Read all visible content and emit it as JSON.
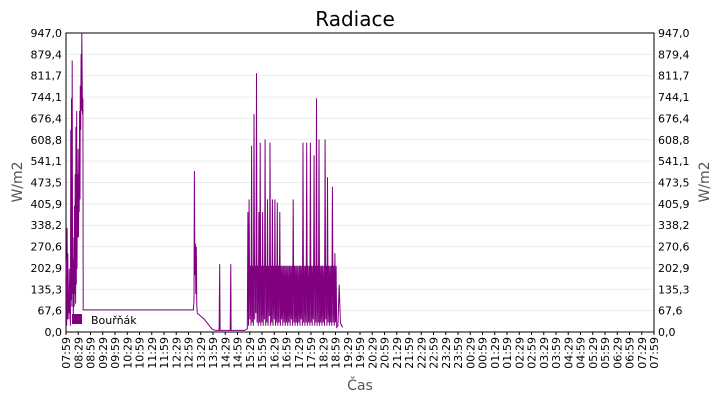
{
  "chart_data": {
    "type": "line",
    "title": "Radiace",
    "xlabel": "Čas",
    "ylabel": "W/m2",
    "ylabel_right": "W/m2",
    "ylim": [
      0.0,
      947.0
    ],
    "y_ticks": [
      "0,0",
      "67,6",
      "135,3",
      "202,9",
      "270,6",
      "338,2",
      "405,9",
      "473,5",
      "541,1",
      "608,8",
      "676,4",
      "744,1",
      "811,7",
      "879,4",
      "947,0"
    ],
    "x_ticks": [
      "07:59",
      "08:29",
      "08:59",
      "09:29",
      "09:59",
      "10:29",
      "10:59",
      "11:29",
      "11:59",
      "12:29",
      "12:59",
      "13:29",
      "13:59",
      "14:29",
      "14:59",
      "15:29",
      "15:59",
      "16:29",
      "16:59",
      "17:29",
      "17:59",
      "18:29",
      "18:59",
      "19:29",
      "19:59",
      "20:29",
      "20:59",
      "21:29",
      "21:59",
      "22:29",
      "22:59",
      "23:29",
      "23:59",
      "00:29",
      "00:59",
      "01:29",
      "01:59",
      "02:29",
      "02:59",
      "03:29",
      "03:59",
      "04:29",
      "04:59",
      "05:29",
      "05:59",
      "06:29",
      "06:59",
      "07:29",
      "07:59"
    ],
    "legend": "bottom-left",
    "grid": true,
    "series": [
      {
        "name": "Bouřňák",
        "color": "#800080",
        "points": [
          [
            0.0,
            180
          ],
          [
            0.03,
            230
          ],
          [
            0.06,
            20
          ],
          [
            0.09,
            330
          ],
          [
            0.12,
            40
          ],
          [
            0.15,
            250
          ],
          [
            0.18,
            60
          ],
          [
            0.21,
            120
          ],
          [
            0.24,
            40
          ],
          [
            0.27,
            200
          ],
          [
            0.3,
            60
          ],
          [
            0.33,
            150
          ],
          [
            0.36,
            20
          ],
          [
            0.39,
            640
          ],
          [
            0.42,
            100
          ],
          [
            0.45,
            740
          ],
          [
            0.48,
            80
          ],
          [
            0.51,
            860
          ],
          [
            0.54,
            120
          ],
          [
            0.57,
            300
          ],
          [
            0.6,
            40
          ],
          [
            0.63,
            230
          ],
          [
            0.66,
            80
          ],
          [
            0.69,
            400
          ],
          [
            0.72,
            120
          ],
          [
            0.75,
            500
          ],
          [
            0.78,
            90
          ],
          [
            0.81,
            650
          ],
          [
            0.84,
            150
          ],
          [
            0.87,
            700
          ],
          [
            0.9,
            200
          ],
          [
            0.93,
            500
          ],
          [
            0.96,
            300
          ],
          [
            0.99,
            580
          ],
          [
            1.02,
            300
          ],
          [
            1.05,
            500
          ],
          [
            1.08,
            380
          ],
          [
            1.11,
            700
          ],
          [
            1.14,
            420
          ],
          [
            1.17,
            780
          ],
          [
            1.2,
            640
          ],
          [
            1.23,
            880
          ],
          [
            1.26,
            700
          ],
          [
            1.29,
            947
          ],
          [
            1.32,
            800
          ],
          [
            1.35,
            690
          ],
          [
            1.38,
            740
          ],
          [
            1.4,
            70
          ],
          [
            2.0,
            70
          ],
          [
            3.0,
            70
          ],
          [
            4.0,
            70
          ],
          [
            5.0,
            70
          ],
          [
            6.0,
            70
          ],
          [
            7.0,
            70
          ],
          [
            8.0,
            70
          ],
          [
            9.0,
            70
          ],
          [
            10.0,
            70
          ],
          [
            10.4,
            70
          ],
          [
            10.45,
            100
          ],
          [
            10.48,
            510
          ],
          [
            10.52,
            180
          ],
          [
            10.56,
            280
          ],
          [
            10.6,
            120
          ],
          [
            10.64,
            270
          ],
          [
            10.68,
            80
          ],
          [
            10.72,
            60
          ],
          [
            11.0,
            50
          ],
          [
            11.3,
            40
          ],
          [
            11.6,
            25
          ],
          [
            11.9,
            10
          ],
          [
            12.2,
            5
          ],
          [
            12.5,
            5
          ],
          [
            12.55,
            215
          ],
          [
            12.58,
            5
          ],
          [
            13.0,
            5
          ],
          [
            13.4,
            5
          ],
          [
            13.45,
            215
          ],
          [
            13.48,
            5
          ],
          [
            14.0,
            5
          ],
          [
            14.6,
            5
          ],
          [
            14.8,
            10
          ],
          [
            14.85,
            380
          ],
          [
            14.9,
            20
          ],
          [
            14.95,
            420
          ],
          [
            15.0,
            40
          ],
          [
            15.05,
            210
          ],
          [
            15.1,
            20
          ],
          [
            15.15,
            590
          ],
          [
            15.2,
            30
          ],
          [
            15.25,
            210
          ],
          [
            15.3,
            20
          ],
          [
            15.35,
            690
          ],
          [
            15.4,
            40
          ],
          [
            15.45,
            210
          ],
          [
            15.5,
            60
          ],
          [
            15.55,
            820
          ],
          [
            15.6,
            30
          ],
          [
            15.65,
            210
          ],
          [
            15.7,
            20
          ],
          [
            15.75,
            380
          ],
          [
            15.8,
            30
          ],
          [
            15.85,
            600
          ],
          [
            15.9,
            20
          ],
          [
            15.95,
            210
          ],
          [
            16.0,
            30
          ],
          [
            16.05,
            380
          ],
          [
            16.1,
            20
          ],
          [
            16.15,
            210
          ],
          [
            16.2,
            40
          ],
          [
            16.25,
            610
          ],
          [
            16.3,
            20
          ],
          [
            16.35,
            210
          ],
          [
            16.4,
            30
          ],
          [
            16.45,
            420
          ],
          [
            16.5,
            20
          ],
          [
            16.55,
            210
          ],
          [
            16.6,
            50
          ],
          [
            16.65,
            600
          ],
          [
            16.7,
            20
          ],
          [
            16.75,
            210
          ],
          [
            16.8,
            30
          ],
          [
            16.85,
            420
          ],
          [
            16.9,
            20
          ],
          [
            16.95,
            210
          ],
          [
            17.0,
            40
          ],
          [
            17.05,
            420
          ],
          [
            17.1,
            20
          ],
          [
            17.15,
            210
          ],
          [
            17.2,
            30
          ],
          [
            17.25,
            410
          ],
          [
            17.3,
            20
          ],
          [
            17.35,
            210
          ],
          [
            17.4,
            30
          ],
          [
            17.45,
            380
          ],
          [
            17.5,
            20
          ],
          [
            17.55,
            210
          ],
          [
            17.6,
            40
          ],
          [
            17.65,
            210
          ],
          [
            17.7,
            20
          ],
          [
            17.75,
            210
          ],
          [
            17.8,
            30
          ],
          [
            17.85,
            210
          ],
          [
            17.9,
            20
          ],
          [
            17.95,
            210
          ],
          [
            18.0,
            30
          ],
          [
            18.05,
            210
          ],
          [
            18.1,
            20
          ],
          [
            18.15,
            210
          ],
          [
            18.2,
            30
          ],
          [
            18.25,
            210
          ],
          [
            18.3,
            20
          ],
          [
            18.35,
            210
          ],
          [
            18.4,
            40
          ],
          [
            18.45,
            210
          ],
          [
            18.5,
            20
          ],
          [
            18.55,
            420
          ],
          [
            18.6,
            30
          ],
          [
            18.65,
            210
          ],
          [
            18.7,
            20
          ],
          [
            18.75,
            210
          ],
          [
            18.8,
            30
          ],
          [
            18.85,
            210
          ],
          [
            18.9,
            20
          ],
          [
            18.95,
            210
          ],
          [
            19.0,
            30
          ],
          [
            19.05,
            210
          ],
          [
            19.1,
            20
          ],
          [
            19.15,
            210
          ],
          [
            19.2,
            40
          ],
          [
            19.25,
            210
          ],
          [
            19.3,
            20
          ],
          [
            19.35,
            600
          ],
          [
            19.4,
            30
          ],
          [
            19.45,
            210
          ],
          [
            19.5,
            20
          ],
          [
            19.55,
            210
          ],
          [
            19.6,
            30
          ],
          [
            19.65,
            600
          ],
          [
            19.7,
            20
          ],
          [
            19.75,
            210
          ],
          [
            19.8,
            30
          ],
          [
            19.85,
            210
          ],
          [
            19.9,
            20
          ],
          [
            19.95,
            600
          ],
          [
            20.0,
            30
          ],
          [
            20.05,
            210
          ],
          [
            20.1,
            20
          ],
          [
            20.15,
            210
          ],
          [
            20.2,
            40
          ],
          [
            20.25,
            560
          ],
          [
            20.3,
            20
          ],
          [
            20.35,
            210
          ],
          [
            20.4,
            30
          ],
          [
            20.45,
            740
          ],
          [
            20.5,
            20
          ],
          [
            20.55,
            210
          ],
          [
            20.6,
            30
          ],
          [
            20.65,
            610
          ],
          [
            20.7,
            20
          ],
          [
            20.75,
            210
          ],
          [
            20.8,
            30
          ],
          [
            20.85,
            210
          ],
          [
            20.9,
            20
          ],
          [
            20.95,
            210
          ],
          [
            21.0,
            30
          ],
          [
            21.05,
            210
          ],
          [
            21.1,
            20
          ],
          [
            21.15,
            610
          ],
          [
            21.2,
            40
          ],
          [
            21.25,
            210
          ],
          [
            21.3,
            20
          ],
          [
            21.35,
            490
          ],
          [
            21.4,
            30
          ],
          [
            21.45,
            210
          ],
          [
            21.5,
            20
          ],
          [
            21.55,
            210
          ],
          [
            21.6,
            30
          ],
          [
            21.65,
            210
          ],
          [
            21.7,
            20
          ],
          [
            21.75,
            460
          ],
          [
            21.8,
            30
          ],
          [
            21.85,
            210
          ],
          [
            21.9,
            20
          ],
          [
            21.95,
            250
          ],
          [
            22.0,
            30
          ],
          [
            22.05,
            210
          ],
          [
            22.1,
            15
          ],
          [
            22.2,
            20
          ],
          [
            22.3,
            150
          ],
          [
            22.4,
            30
          ],
          [
            22.5,
            20
          ],
          [
            22.6,
            15
          ]
        ]
      }
    ]
  }
}
